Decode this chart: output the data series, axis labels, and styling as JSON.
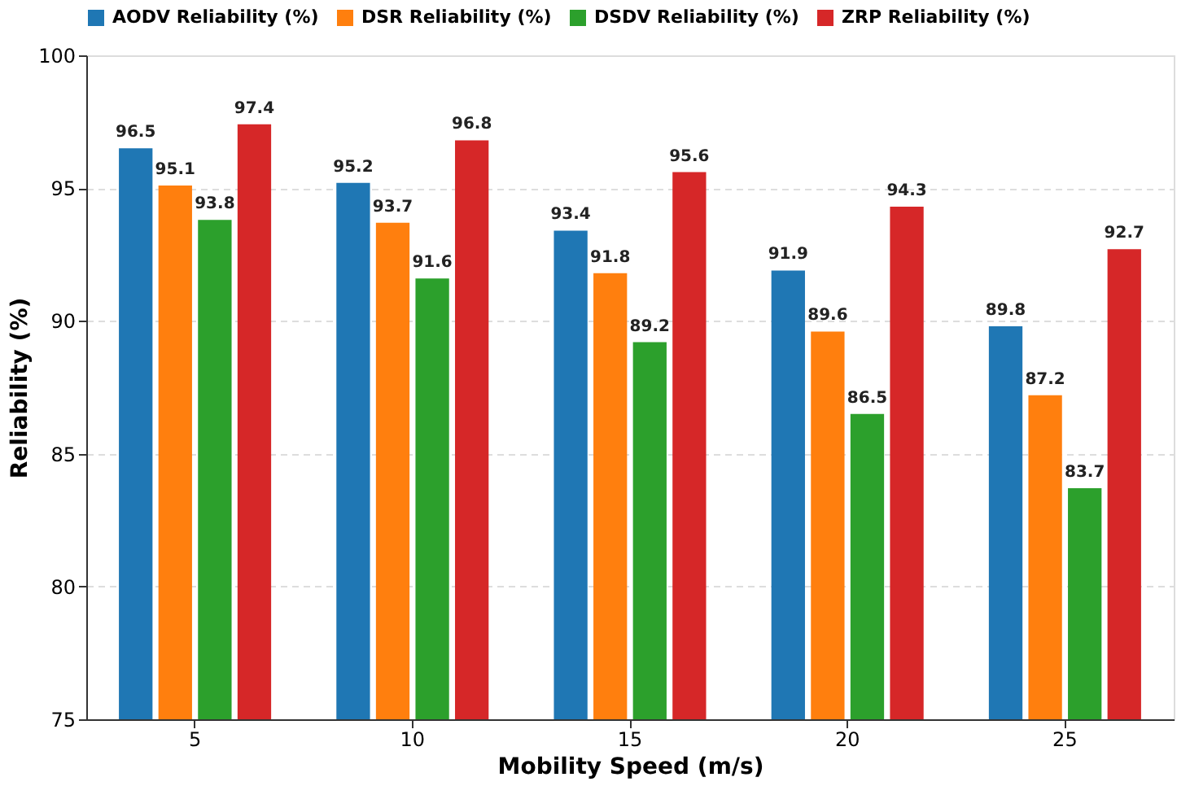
{
  "chart_data": {
    "type": "bar",
    "xlabel": "Mobility Speed (m/s)",
    "ylabel": "Reliability (%)",
    "categories": [
      "5",
      "10",
      "15",
      "20",
      "25"
    ],
    "series": [
      {
        "name": "AODV Reliability (%)",
        "color": "#1f77b4",
        "values": [
          96.5,
          95.2,
          93.4,
          91.9,
          89.8
        ]
      },
      {
        "name": "DSR Reliability (%)",
        "color": "#ff7f0e",
        "values": [
          95.1,
          93.7,
          91.8,
          89.6,
          87.2
        ]
      },
      {
        "name": "DSDV Reliability (%)",
        "color": "#2ca02c",
        "values": [
          93.8,
          91.6,
          89.2,
          86.5,
          83.7
        ]
      },
      {
        "name": "ZRP Reliability (%)",
        "color": "#d62728",
        "values": [
          97.4,
          96.8,
          95.6,
          94.3,
          92.7
        ]
      }
    ],
    "ylim": [
      75,
      100
    ],
    "yticks": [
      75,
      80,
      85,
      90,
      95,
      100
    ],
    "grid": "y",
    "legend": "top",
    "data_labels": true
  }
}
